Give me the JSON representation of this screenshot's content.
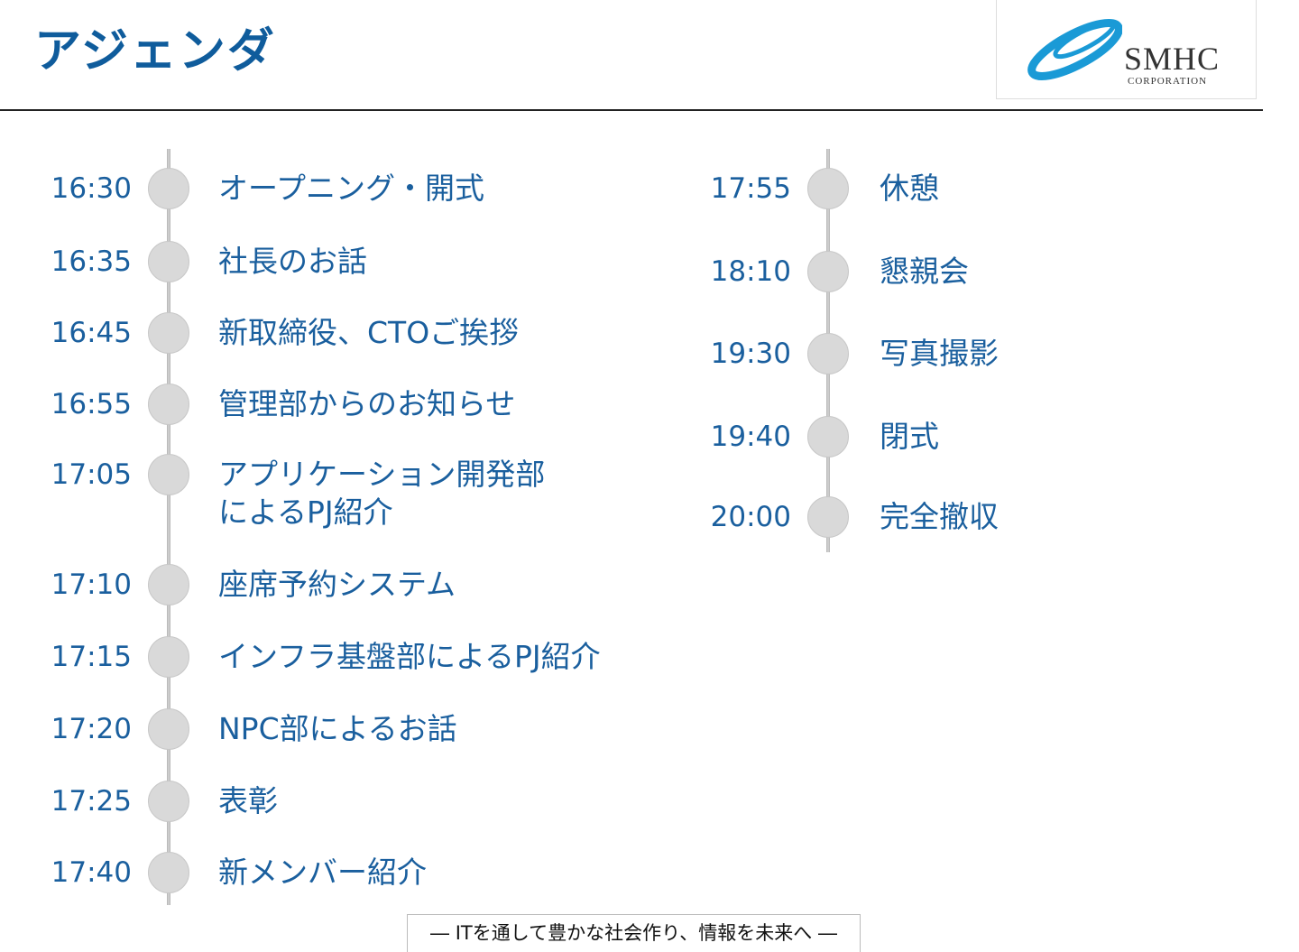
{
  "header": {
    "title": "アジェンダ"
  },
  "logo": {
    "name": "SMHC",
    "sub": "CORPORATION",
    "accent": "#1a9ad6"
  },
  "agenda_left": [
    {
      "time": "16:30",
      "label": "オープニング・開式"
    },
    {
      "time": "16:35",
      "label": "社長のお話"
    },
    {
      "time": "16:45",
      "label": "新取締役、CTOご挨拶"
    },
    {
      "time": "16:55",
      "label": "管理部からのお知らせ"
    },
    {
      "time": "17:05",
      "label": "アプリケーション開発部\nによるPJ紹介"
    },
    {
      "time": "17:10",
      "label": "座席予約システム"
    },
    {
      "time": "17:15",
      "label": "インフラ基盤部によるPJ紹介"
    },
    {
      "time": "17:20",
      "label": "NPC部によるお話"
    },
    {
      "time": "17:25",
      "label": "表彰"
    },
    {
      "time": "17:40",
      "label": "新メンバー紹介"
    }
  ],
  "agenda_right": [
    {
      "time": "17:55",
      "label": "休憩"
    },
    {
      "time": "18:10",
      "label": "懇親会"
    },
    {
      "time": "19:30",
      "label": "写真撮影"
    },
    {
      "time": "19:40",
      "label": "閉式"
    },
    {
      "time": "20:00",
      "label": "完全撤収"
    }
  ],
  "footer": {
    "text": "―  ITを通して豊かな社会作り、情報を未来へ  ―"
  },
  "colors": {
    "text": "#1a5f9e",
    "dot": "#d9d9d9"
  }
}
